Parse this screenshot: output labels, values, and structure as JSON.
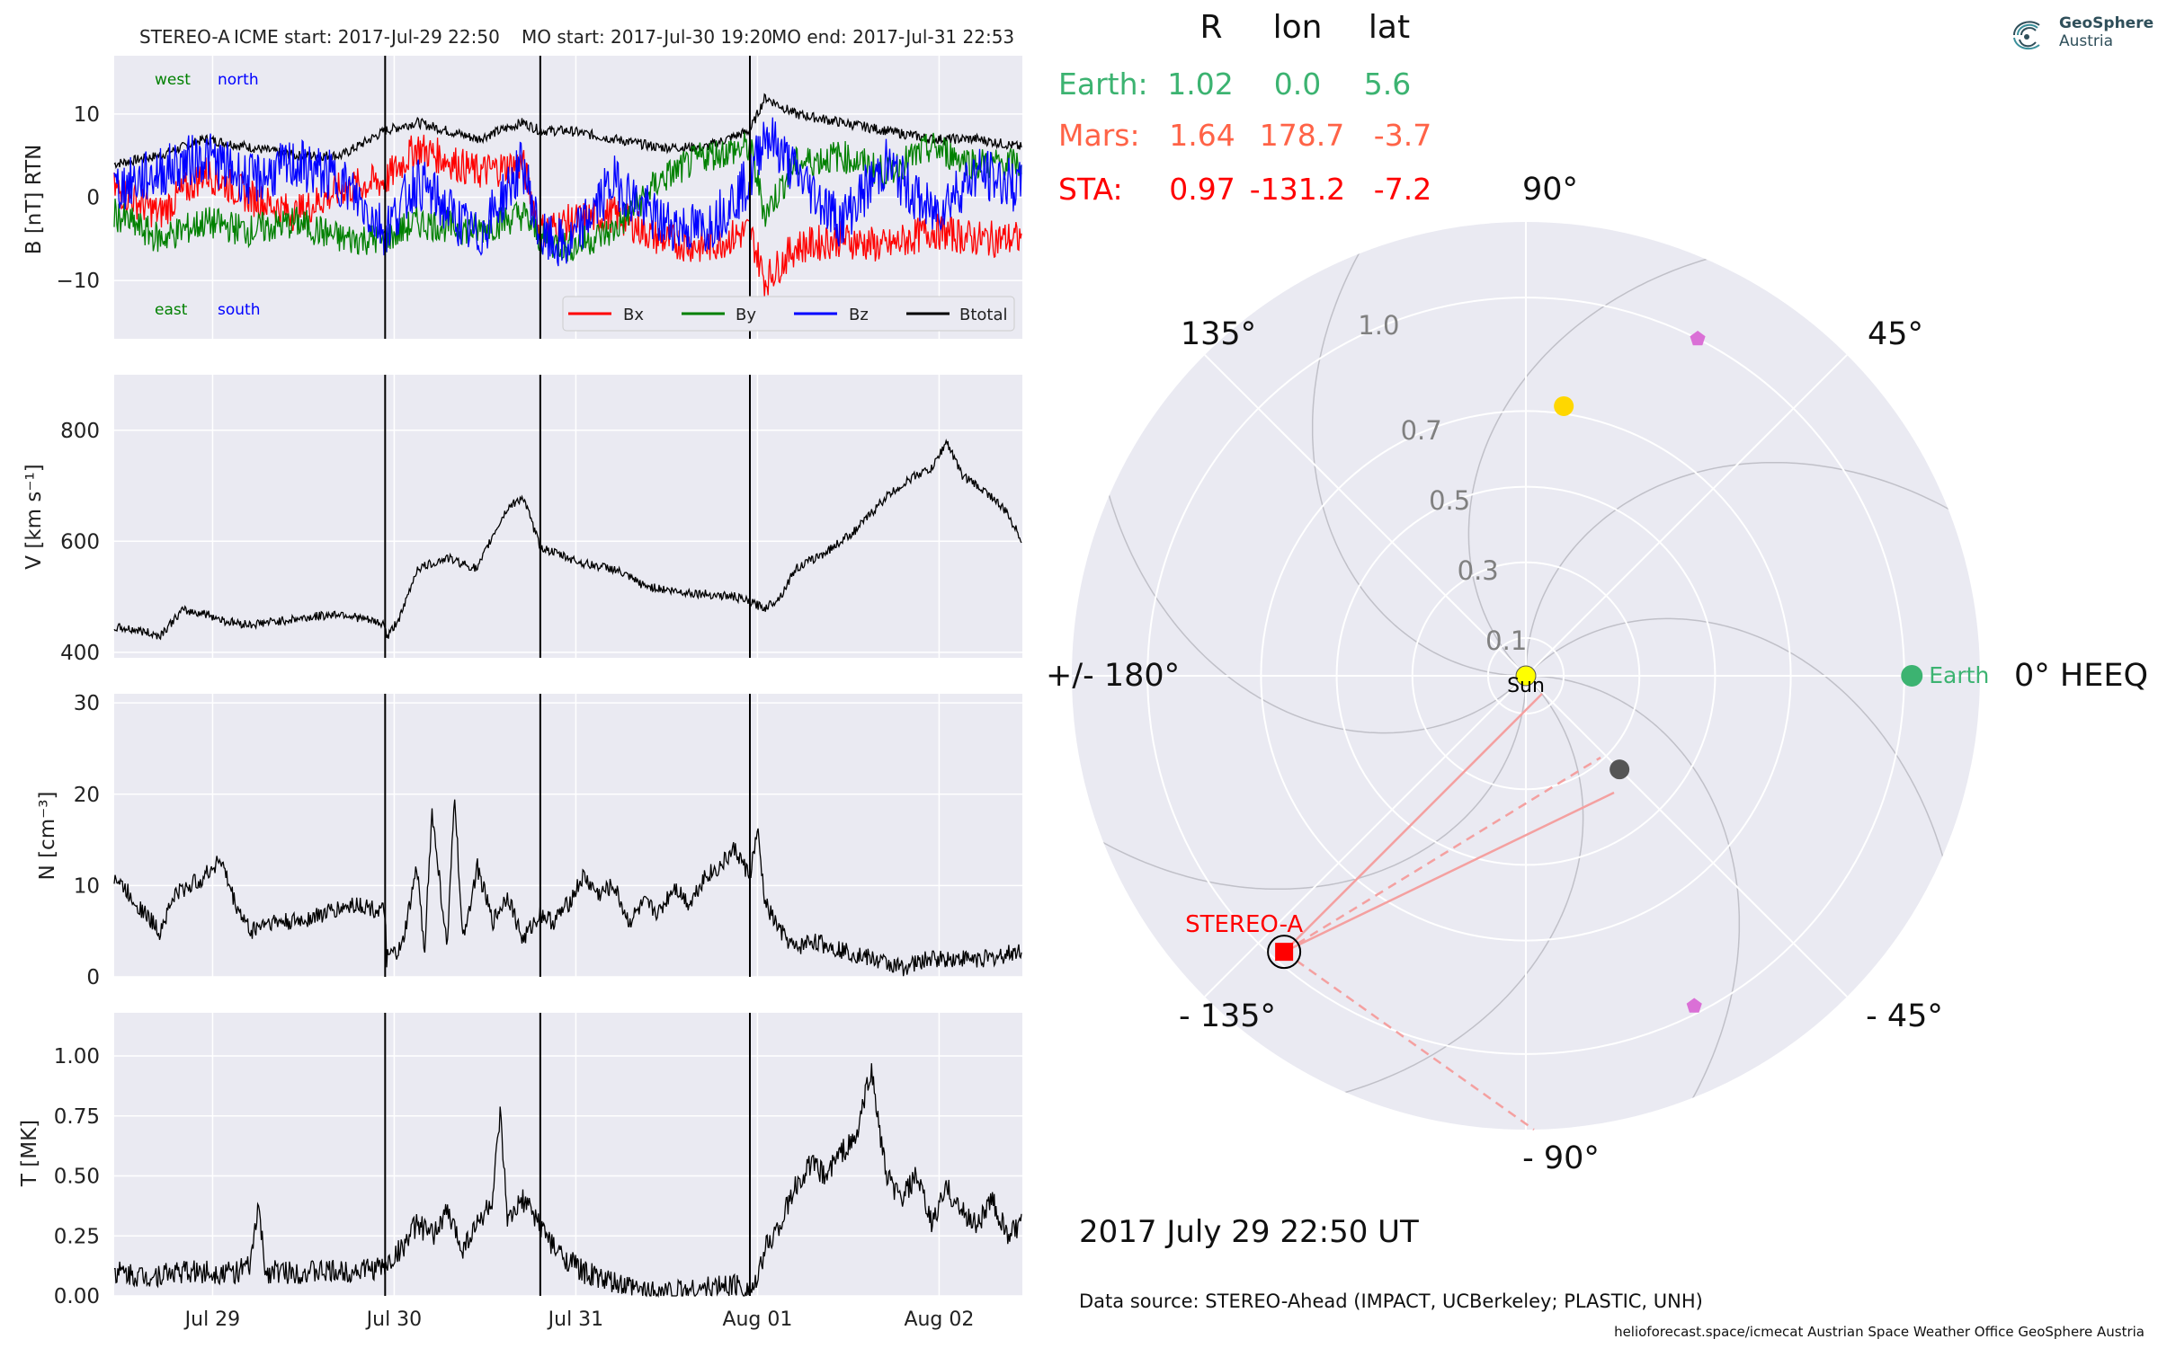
{
  "header": {
    "spacecraft": "STEREO-A",
    "icme_start": "ICME start: 2017-Jul-29 22:50",
    "mo_start": "MO start: 2017-Jul-30 19:20",
    "mo_end": "MO end: 2017-Jul-31 22:53"
  },
  "logo": {
    "line1": "GeoSphere",
    "line2": "Austria"
  },
  "footer": {
    "datetime": "2017 July 29  22:50 UT",
    "source": "Data source: STEREO-Ahead (IMPACT, UCBerkeley; PLASTIC, UNH)",
    "credits": "helioforecast.space/icmecat   Austrian Space Weather Office   GeoSphere Austria"
  },
  "colors": {
    "panel_bg": "#eaeaf2",
    "bx": "#ff0000",
    "by": "#008000",
    "bz": "#0000ff",
    "btotal": "#000000",
    "earth": "#3cb371",
    "mars": "#ff6347",
    "sta": "#ff0000",
    "sun": "#ffff00",
    "venus": "#ffd700",
    "mercury": "#555555",
    "probe": "#da70d6",
    "spiral": "#c0c0c8"
  },
  "chart_data": [
    {
      "type": "line",
      "id": "magnetic-field",
      "ylabel": "B [nT] RTN",
      "ylim": [
        -17,
        17
      ],
      "yticks": [
        "10",
        "0",
        "−10"
      ],
      "ytick_values": [
        10,
        0,
        -10
      ],
      "annotations": {
        "west": "west",
        "north": "north",
        "east": "east",
        "south": "south"
      },
      "legend": {
        "placement": "lower-right",
        "entries": [
          "Bx",
          "By",
          "Bz",
          "Btotal"
        ]
      },
      "x_range_days": [
        "2017-07-28T11:00",
        "2017-08-02T11:00"
      ],
      "series": [
        {
          "name": "Btotal",
          "x_hours": [
            0,
            6,
            12,
            18,
            24,
            30,
            35.8,
            40,
            48,
            54,
            56.3,
            60,
            66,
            72,
            78,
            84,
            86,
            90,
            96,
            102,
            108,
            114,
            120
          ],
          "values": [
            4,
            5,
            7,
            6,
            5,
            5,
            8,
            9,
            7,
            9,
            8,
            8,
            7,
            6,
            6,
            8,
            12,
            10,
            9,
            8,
            7,
            7,
            6
          ]
        },
        {
          "name": "Bx",
          "x_hours": [
            0,
            6,
            12,
            18,
            24,
            30,
            35.8,
            40,
            48,
            54,
            56.3,
            60,
            66,
            72,
            78,
            84,
            86,
            90,
            96,
            102,
            108,
            114,
            120
          ],
          "values": [
            1,
            -2,
            3,
            0,
            -2,
            1,
            2,
            6,
            3,
            4,
            -4,
            -3,
            -2,
            -5,
            -6,
            -4,
            -10,
            -6,
            -5,
            -6,
            -4,
            -5,
            -5
          ]
        },
        {
          "name": "By",
          "x_hours": [
            0,
            6,
            12,
            18,
            24,
            30,
            35.8,
            40,
            48,
            54,
            56.3,
            60,
            66,
            72,
            78,
            84,
            86,
            90,
            96,
            102,
            108,
            114,
            120
          ],
          "values": [
            -2,
            -5,
            -3,
            -4,
            -3,
            -5,
            -5,
            -3,
            -4,
            -2,
            -5,
            -6,
            -4,
            2,
            5,
            6,
            -2,
            4,
            5,
            3,
            6,
            4,
            4
          ]
        },
        {
          "name": "Bz",
          "x_hours": [
            0,
            6,
            12,
            18,
            24,
            30,
            35.8,
            40,
            48,
            54,
            56.3,
            60,
            66,
            72,
            78,
            84,
            86,
            90,
            96,
            102,
            108,
            114,
            120
          ],
          "values": [
            1,
            3,
            5,
            2,
            4,
            2,
            -4,
            2,
            -5,
            4,
            -5,
            -6,
            2,
            -3,
            -4,
            2,
            8,
            3,
            -3,
            4,
            -2,
            3,
            1
          ]
        }
      ]
    },
    {
      "type": "line",
      "id": "speed",
      "ylabel": "V [km s⁻¹]",
      "ylim": [
        390,
        900
      ],
      "yticks": [
        "800",
        "600",
        "400"
      ],
      "ytick_values": [
        800,
        600,
        400
      ],
      "series": [
        {
          "name": "V",
          "x_hours": [
            0,
            3,
            6,
            9,
            12,
            15,
            18,
            24,
            30,
            35.8,
            36,
            38,
            40,
            44,
            48,
            50,
            52,
            54,
            56.3,
            58,
            62,
            66,
            70,
            74,
            78,
            82,
            84,
            86,
            88,
            90,
            94,
            98,
            102,
            106,
            108,
            110,
            112,
            116,
            118,
            120
          ],
          "values": [
            445,
            440,
            430,
            475,
            470,
            455,
            450,
            460,
            470,
            450,
            425,
            470,
            550,
            570,
            550,
            610,
            660,
            680,
            590,
            580,
            560,
            550,
            520,
            510,
            505,
            500,
            490,
            480,
            500,
            550,
            580,
            620,
            680,
            720,
            730,
            780,
            720,
            680,
            650,
            600
          ]
        }
      ]
    },
    {
      "type": "line",
      "id": "density",
      "ylabel": "N [cm⁻³]",
      "ylim": [
        0,
        31
      ],
      "yticks": [
        "30",
        "20",
        "10",
        "0"
      ],
      "ytick_values": [
        30,
        20,
        10,
        0
      ],
      "series": [
        {
          "name": "N",
          "x_hours": [
            0,
            2,
            4,
            6,
            8,
            12,
            14,
            16,
            18,
            20,
            24,
            28,
            32,
            35.8,
            36,
            38,
            40,
            41,
            42,
            44,
            45,
            46,
            48,
            50,
            52,
            54,
            56.3,
            58,
            60,
            62,
            64,
            66,
            68,
            70,
            72,
            74,
            76,
            78,
            80,
            82,
            84,
            85,
            86,
            88,
            90,
            92,
            96,
            100,
            104,
            108,
            112,
            116,
            120
          ],
          "values": [
            11,
            9,
            7,
            5,
            9,
            11,
            13,
            8,
            5,
            6,
            6,
            7,
            8,
            7,
            2,
            3,
            12,
            3,
            18,
            3,
            20,
            4,
            12,
            6,
            9,
            4,
            7,
            6,
            8,
            11,
            9,
            10,
            6,
            8,
            7,
            10,
            8,
            11,
            12,
            14,
            11,
            16,
            8,
            5,
            3,
            4,
            3,
            2,
            1,
            2,
            2,
            2,
            3
          ]
        }
      ]
    },
    {
      "type": "line",
      "id": "temperature",
      "ylabel": "T [MK]",
      "ylim": [
        0,
        1.18
      ],
      "yticks": [
        "1.00",
        "0.75",
        "0.50",
        "0.25",
        "0.00"
      ],
      "ytick_values": [
        1.0,
        0.75,
        0.5,
        0.25,
        0
      ],
      "x_ticks": [
        "Jul 29",
        "Jul 30",
        "Jul 31",
        "Aug 01",
        "Aug 02"
      ],
      "x_tick_hours": [
        13,
        37,
        61,
        85,
        109
      ],
      "series": [
        {
          "name": "T",
          "x_hours": [
            0,
            4,
            8,
            12,
            16,
            18,
            19,
            20,
            24,
            30,
            35.8,
            38,
            40,
            42,
            44,
            46,
            48,
            50,
            51,
            52,
            54,
            56.3,
            58,
            62,
            66,
            70,
            74,
            78,
            82,
            84,
            85,
            86,
            88,
            90,
            92,
            94,
            96,
            98,
            100,
            102,
            104,
            106,
            108,
            110,
            112,
            114,
            116,
            118,
            120
          ],
          "values": [
            0.1,
            0.08,
            0.1,
            0.1,
            0.1,
            0.12,
            0.38,
            0.1,
            0.1,
            0.1,
            0.12,
            0.2,
            0.3,
            0.25,
            0.35,
            0.2,
            0.3,
            0.4,
            0.75,
            0.3,
            0.4,
            0.3,
            0.2,
            0.1,
            0.05,
            0.02,
            0.02,
            0.03,
            0.05,
            0.03,
            0.05,
            0.2,
            0.3,
            0.45,
            0.55,
            0.5,
            0.6,
            0.65,
            0.95,
            0.5,
            0.4,
            0.5,
            0.3,
            0.45,
            0.35,
            0.3,
            0.4,
            0.25,
            0.3
          ]
        }
      ]
    },
    {
      "type": "scatter",
      "id": "polar-position",
      "coordinate_system": "0° HEEQ",
      "angle_labels": {
        "a0": "0° HEEQ",
        "a45": "45°",
        "a90": "90°",
        "a135": "135°",
        "a180": "+/- 180°",
        "am135": "- 135°",
        "am90": "- 90°",
        "am45": "- 45°"
      },
      "radial_ticks": [
        "0.1",
        "0.3",
        "0.5",
        "0.7",
        "1.0"
      ],
      "radial_tick_values": [
        0.1,
        0.3,
        0.5,
        0.7,
        1.0
      ],
      "r_max": 1.2,
      "table": {
        "headers": [
          "R",
          "lon",
          "lat"
        ],
        "rows": [
          {
            "name": "Earth:",
            "R": "1.02",
            "lon": "0.0",
            "lat": "5.6"
          },
          {
            "name": "Mars:",
            "R": "1.64",
            "lon": "178.7",
            "lat": "-3.7"
          },
          {
            "name": "STA:",
            "R": "0.97",
            "lon": "-131.2",
            "lat": "-7.2"
          }
        ]
      },
      "bodies": [
        {
          "name": "Sun",
          "r": 0.0,
          "lon": 0
        },
        {
          "name": "Earth",
          "r": 1.02,
          "lon": 0.0
        },
        {
          "name": "STEREO-A",
          "r": 0.97,
          "lon": -131.2
        },
        {
          "name": "venus",
          "r": 0.72,
          "lon": 82
        },
        {
          "name": "mercury",
          "r": 0.35,
          "lon": -45
        },
        {
          "name": "probe-upper",
          "r": 1.0,
          "lon": 63
        },
        {
          "name": "probe-lower",
          "r": 0.98,
          "lon": -63
        }
      ]
    }
  ]
}
